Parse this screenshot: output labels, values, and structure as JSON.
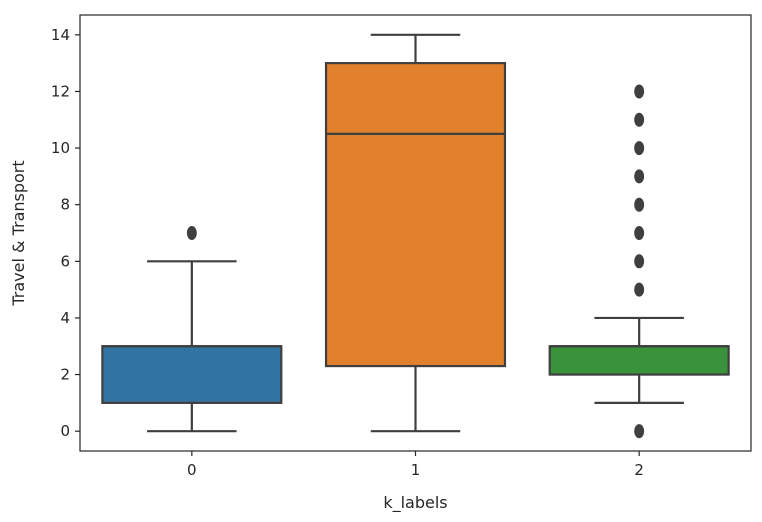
{
  "chart_data": {
    "type": "box",
    "xlabel": "k_labels",
    "ylabel": "Travel & Transport",
    "ylim": [
      -0.7,
      14.7
    ],
    "yticks": [
      0,
      2,
      4,
      6,
      8,
      10,
      12,
      14
    ],
    "categories": [
      "0",
      "1",
      "2"
    ],
    "boxes": [
      {
        "category": "0",
        "color": "#3274a1",
        "whisker_low": 0,
        "q1": 1,
        "median": 3,
        "q3": 3,
        "whisker_high": 6,
        "outliers": [
          7
        ]
      },
      {
        "category": "1",
        "color": "#e1812c",
        "whisker_low": 0,
        "q1": 2.3,
        "median": 10.5,
        "q3": 13,
        "whisker_high": 14,
        "outliers": []
      },
      {
        "category": "2",
        "color": "#3a923a",
        "whisker_low": 1,
        "q1": 2,
        "median": 3,
        "q3": 3,
        "whisker_high": 4,
        "outliers": [
          0,
          5,
          6,
          7,
          8,
          9,
          10,
          11,
          12
        ]
      }
    ]
  }
}
